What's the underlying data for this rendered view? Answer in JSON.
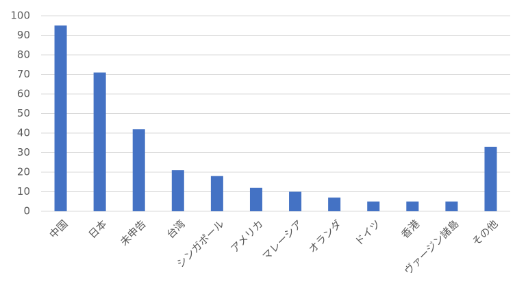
{
  "chart_data": {
    "type": "bar",
    "categories": [
      "中国",
      "日本",
      "未申告",
      "台湾",
      "シンガポール",
      "アメリカ",
      "マレーシア",
      "オランダ",
      "ドイツ",
      "香港",
      "ヴァージン諸島",
      "その他"
    ],
    "values": [
      95,
      71,
      42,
      21,
      18,
      12,
      10,
      7,
      5,
      5,
      5,
      33
    ],
    "color": "#4472c4",
    "ylim": [
      0,
      100
    ],
    "yticks": [
      0,
      10,
      20,
      30,
      40,
      50,
      60,
      70,
      80,
      90,
      100
    ],
    "grid": true
  }
}
